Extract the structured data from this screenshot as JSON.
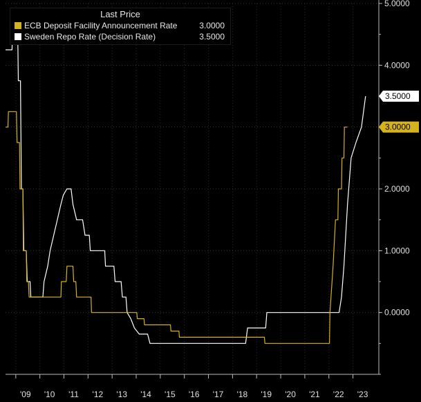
{
  "legend": {
    "title": "Last Price",
    "entries": [
      {
        "name": "ECB Deposit Facility Announcement Rate",
        "value": "3.0000",
        "color": "#d6b21d"
      },
      {
        "name": "Sweden Repo Rate (Decision Rate)",
        "value": "3.5000",
        "color": "#ffffff"
      }
    ]
  },
  "chart_data": {
    "type": "line",
    "title": "",
    "xlabel": "",
    "ylabel": "",
    "xlim": [
      2008.0,
      2023.5
    ],
    "ylim": [
      -1.0,
      5.0
    ],
    "yticks": [
      {
        "value": 5.0,
        "label": "5.0000"
      },
      {
        "value": 4.0,
        "label": "4.0000"
      },
      {
        "value": 2.0,
        "label": "2.0000"
      },
      {
        "value": 1.0,
        "label": "1.0000"
      },
      {
        "value": 0.0,
        "label": "0.0000"
      }
    ],
    "xticks": [
      {
        "value": 2009,
        "label": "'09"
      },
      {
        "value": 2010,
        "label": "'10"
      },
      {
        "value": 2011,
        "label": "'11"
      },
      {
        "value": 2012,
        "label": "'12"
      },
      {
        "value": 2013,
        "label": "'13"
      },
      {
        "value": 2014,
        "label": "'14"
      },
      {
        "value": 2015,
        "label": "'15"
      },
      {
        "value": 2016,
        "label": "'16"
      },
      {
        "value": 2017,
        "label": "'17"
      },
      {
        "value": 2018,
        "label": "'18"
      },
      {
        "value": 2019,
        "label": "'19"
      },
      {
        "value": 2020,
        "label": "'20"
      },
      {
        "value": 2021,
        "label": "'21"
      },
      {
        "value": 2022,
        "label": "'22"
      },
      {
        "value": 2023,
        "label": "'23"
      }
    ],
    "last_price_labels": [
      {
        "series": "Sweden Repo Rate (Decision Rate)",
        "value": 3.5,
        "label": "3.5000",
        "bg": "#ffffff",
        "fg": "#000000"
      },
      {
        "series": "ECB Deposit Facility Announcement Rate",
        "value": 3.0,
        "label": "3.0000",
        "bg": "#d6b21d",
        "fg": "#000000"
      }
    ],
    "series": [
      {
        "name": "Sweden Repo Rate (Decision Rate)",
        "color": "#ffffff",
        "points": [
          [
            2008.0,
            4.25
          ],
          [
            2008.27,
            4.25
          ],
          [
            2008.3,
            4.75
          ],
          [
            2008.5,
            4.75
          ],
          [
            2008.53,
            3.75
          ],
          [
            2008.62,
            3.75
          ],
          [
            2008.66,
            2.0
          ],
          [
            2008.72,
            2.0
          ],
          [
            2008.76,
            1.0
          ],
          [
            2008.86,
            1.0
          ],
          [
            2008.9,
            0.5
          ],
          [
            2009.02,
            0.5
          ],
          [
            2009.05,
            0.25
          ],
          [
            2009.55,
            0.25
          ],
          [
            2009.6,
            0.5
          ],
          [
            2009.75,
            0.75
          ],
          [
            2009.85,
            1.0
          ],
          [
            2010.0,
            1.25
          ],
          [
            2010.15,
            1.5
          ],
          [
            2010.3,
            1.75
          ],
          [
            2010.4,
            1.9
          ],
          [
            2010.55,
            2.0
          ],
          [
            2010.72,
            2.0
          ],
          [
            2010.8,
            1.75
          ],
          [
            2010.95,
            1.5
          ],
          [
            2011.2,
            1.5
          ],
          [
            2011.3,
            1.25
          ],
          [
            2011.48,
            1.25
          ],
          [
            2011.52,
            1.0
          ],
          [
            2012.12,
            1.0
          ],
          [
            2012.15,
            0.75
          ],
          [
            2012.5,
            0.75
          ],
          [
            2012.55,
            0.5
          ],
          [
            2012.8,
            0.5
          ],
          [
            2012.85,
            0.25
          ],
          [
            2013.0,
            0.25
          ],
          [
            2013.05,
            0.0
          ],
          [
            2013.2,
            -0.1
          ],
          [
            2013.35,
            -0.25
          ],
          [
            2013.55,
            -0.35
          ],
          [
            2013.9,
            -0.35
          ],
          [
            2014.0,
            -0.5
          ],
          [
            2017.97,
            -0.5
          ],
          [
            2018.05,
            -0.25
          ],
          [
            2018.8,
            -0.25
          ],
          [
            2018.85,
            0.0
          ],
          [
            2021.85,
            0.0
          ],
          [
            2021.95,
            0.25
          ],
          [
            2022.05,
            0.75
          ],
          [
            2022.2,
            1.75
          ],
          [
            2022.35,
            2.5
          ],
          [
            2022.55,
            2.75
          ],
          [
            2022.78,
            3.0
          ],
          [
            2022.95,
            3.5
          ]
        ]
      },
      {
        "name": "ECB Deposit Facility Announcement Rate",
        "color": "#d6b21d",
        "points": [
          [
            2008.0,
            3.0
          ],
          [
            2008.1,
            3.0
          ],
          [
            2008.12,
            3.25
          ],
          [
            2008.45,
            3.25
          ],
          [
            2008.48,
            2.75
          ],
          [
            2008.58,
            2.75
          ],
          [
            2008.6,
            2.0
          ],
          [
            2008.72,
            2.0
          ],
          [
            2008.74,
            1.0
          ],
          [
            2008.86,
            1.0
          ],
          [
            2008.88,
            0.5
          ],
          [
            2008.95,
            0.5
          ],
          [
            2008.98,
            0.25
          ],
          [
            2010.3,
            0.25
          ],
          [
            2010.32,
            0.5
          ],
          [
            2010.52,
            0.5
          ],
          [
            2010.55,
            0.75
          ],
          [
            2010.8,
            0.75
          ],
          [
            2010.83,
            0.5
          ],
          [
            2010.92,
            0.5
          ],
          [
            2010.95,
            0.25
          ],
          [
            2011.55,
            0.25
          ],
          [
            2011.57,
            0.0
          ],
          [
            2013.45,
            0.0
          ],
          [
            2013.47,
            -0.1
          ],
          [
            2013.75,
            -0.1
          ],
          [
            2013.77,
            -0.2
          ],
          [
            2014.85,
            -0.2
          ],
          [
            2014.87,
            -0.3
          ],
          [
            2015.2,
            -0.3
          ],
          [
            2015.22,
            -0.4
          ],
          [
            2018.75,
            -0.4
          ],
          [
            2018.77,
            -0.5
          ],
          [
            2021.45,
            -0.5
          ],
          [
            2021.47,
            0.0
          ],
          [
            2021.6,
            0.75
          ],
          [
            2021.7,
            1.5
          ],
          [
            2021.8,
            1.5
          ],
          [
            2021.82,
            2.0
          ],
          [
            2021.95,
            2.0
          ],
          [
            2021.97,
            2.5
          ],
          [
            2022.05,
            2.5
          ],
          [
            2022.07,
            3.0
          ],
          [
            2022.2,
            3.0
          ]
        ]
      }
    ]
  }
}
